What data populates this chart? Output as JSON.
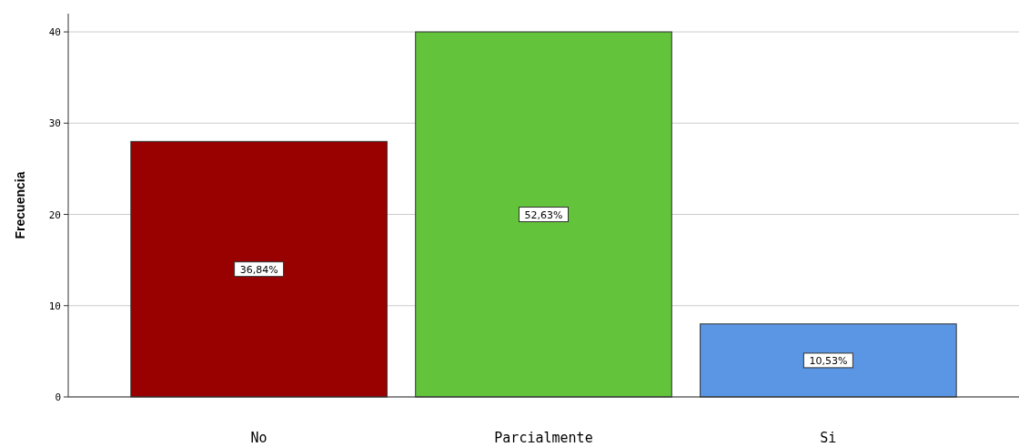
{
  "chart_data": {
    "type": "bar",
    "ylabel": "Frecuencia",
    "categories": [
      "No",
      "Parcialmente",
      "Si"
    ],
    "values": [
      28,
      40,
      8
    ],
    "colors": [
      "#990000",
      "#63c43b",
      "#5a96e3"
    ],
    "annotations": [
      "36,84%",
      "52,63%",
      "10,53%"
    ],
    "ylim": [
      0,
      42
    ],
    "yticks": [
      0,
      10,
      20,
      30,
      40
    ],
    "grid": "y"
  }
}
